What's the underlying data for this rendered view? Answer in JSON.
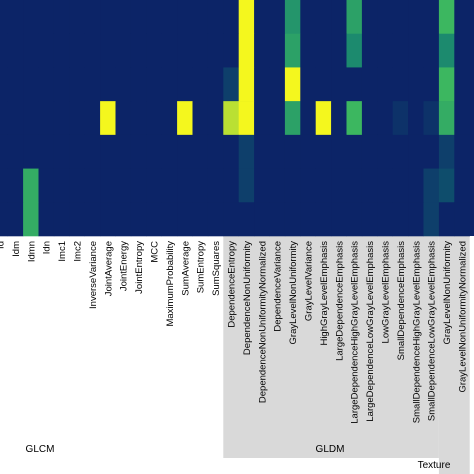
{
  "chart_data": {
    "type": "heatmap",
    "colormap": [
      "#0c2467",
      "#0f5a6e",
      "#1c8a6e",
      "#3cb760",
      "#a6d83a",
      "#f4f71e"
    ],
    "columns": [
      "Id",
      "Idm",
      "Idmn",
      "Idn",
      "Imc1",
      "Imc2",
      "InverseVariance",
      "JointAverage",
      "JointEnergy",
      "JointEntropy",
      "MCC",
      "MaximumProbability",
      "SumAverage",
      "SumEntropy",
      "SumSquares",
      "DependenceEntropy",
      "DependenceNonUniformity",
      "DependenceNonUniformityNormalized",
      "DependenceVariance",
      "GrayLevelNonUniformity",
      "GrayLevelVariance",
      "HighGrayLevelEmphasis",
      "LargeDependenceEmphasis",
      "LargeDependenceHighGrayLevelEmphasis",
      "LargeDependenceLowGrayLevelEmphasis",
      "LowGrayLevelEmphasis",
      "SmallDependenceEmphasis",
      "SmallDependenceHighGrayLevelEmphasis",
      "SmallDependenceLowGrayLevelEmphasis",
      "GrayLevelNonUniformity",
      "GrayLevelNonUniformityNormalized"
    ],
    "groups": [
      {
        "label": "GLCM",
        "shaded": false
      },
      {
        "label": "GLDM",
        "shaded": true
      },
      {
        "label": "Texture",
        "shaded": true
      }
    ],
    "rows": 7,
    "values": [
      [
        0,
        0,
        0,
        0,
        0,
        0,
        0,
        0,
        0,
        0,
        0,
        0,
        0,
        0,
        0,
        0,
        1.0,
        0,
        0,
        0.45,
        0,
        0,
        0,
        0.5,
        0,
        0,
        0,
        0,
        0,
        0.6,
        0
      ],
      [
        0,
        0,
        0,
        0,
        0,
        0,
        0,
        0,
        0,
        0,
        0,
        0,
        0,
        0,
        0,
        0,
        1.0,
        0,
        0,
        0.5,
        0,
        0,
        0,
        0.4,
        0,
        0,
        0,
        0,
        0,
        0.4,
        0
      ],
      [
        0,
        0,
        0,
        0,
        0,
        0,
        0,
        0,
        0,
        0,
        0,
        0,
        0,
        0,
        0,
        0.1,
        1.0,
        0,
        0,
        1.0,
        0,
        0,
        0,
        0,
        0,
        0,
        0,
        0,
        0,
        0.6,
        0
      ],
      [
        0,
        0,
        0,
        0,
        0,
        0,
        0,
        1.0,
        0,
        0,
        0,
        0,
        1.0,
        0,
        0,
        0.85,
        1.0,
        0,
        0,
        0.5,
        0,
        1.0,
        0,
        0.6,
        0,
        0,
        0.05,
        0,
        0.05,
        0.55,
        0
      ],
      [
        0,
        0,
        0,
        0,
        0,
        0,
        0,
        0,
        0,
        0,
        0,
        0,
        0,
        0,
        0,
        0,
        0.1,
        0,
        0,
        0,
        0,
        0,
        0,
        0,
        0,
        0,
        0,
        0,
        0,
        0.1,
        0
      ],
      [
        0,
        0,
        0.55,
        0,
        0,
        0,
        0,
        0,
        0,
        0,
        0,
        0,
        0,
        0,
        0,
        0,
        0.1,
        0,
        0,
        0,
        0,
        0,
        0,
        0,
        0,
        0,
        0,
        0,
        0.1,
        0.15,
        0
      ],
      [
        0,
        0,
        0.55,
        0,
        0,
        0,
        0,
        0,
        0,
        0,
        0,
        0,
        0,
        0,
        0,
        0,
        0,
        0,
        0,
        0,
        0,
        0,
        0,
        0,
        0,
        0,
        0,
        0,
        0.1,
        0,
        0
      ]
    ]
  }
}
